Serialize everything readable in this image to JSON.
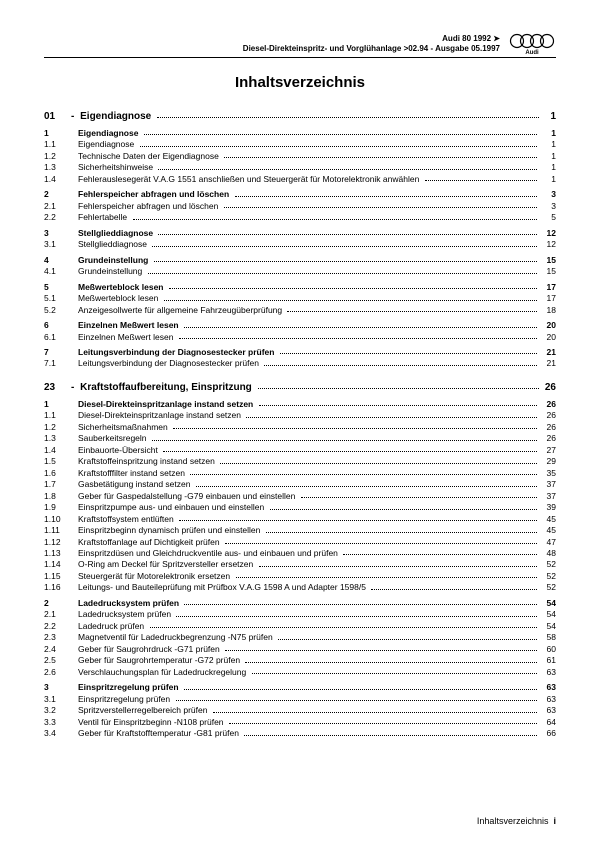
{
  "header": {
    "line1": "Audi 80 1992 ➤",
    "line2": "Diesel-Direkteinspritz- und Vorglühanlage >02.94 - Ausgabe 05.1997"
  },
  "title": "Inhaltsverzeichnis",
  "chapters": [
    {
      "num": "01",
      "title": "Eigendiagnose",
      "page": "1",
      "groups": [
        [
          {
            "num": "1",
            "title": "Eigendiagnose",
            "page": "1",
            "head": true
          },
          {
            "num": "1.1",
            "title": "Eigendiagnose",
            "page": "1"
          },
          {
            "num": "1.2",
            "title": "Technische Daten der Eigendiagnose",
            "page": "1"
          },
          {
            "num": "1.3",
            "title": "Sicherheitshinweise",
            "page": "1"
          },
          {
            "num": "1.4",
            "title": "Fehlerauslesegerät V.A.G 1551 anschließen und Steuergerät für Motorelektronik anwählen",
            "page": "1"
          }
        ],
        [
          {
            "num": "2",
            "title": "Fehlerspeicher abfragen und löschen",
            "page": "3",
            "head": true
          },
          {
            "num": "2.1",
            "title": "Fehlerspeicher abfragen und löschen",
            "page": "3"
          },
          {
            "num": "2.2",
            "title": "Fehlertabelle",
            "page": "5"
          }
        ],
        [
          {
            "num": "3",
            "title": "Stellglieddiagnose",
            "page": "12",
            "head": true
          },
          {
            "num": "3.1",
            "title": "Stellglieddiagnose",
            "page": "12"
          }
        ],
        [
          {
            "num": "4",
            "title": "Grundeinstellung",
            "page": "15",
            "head": true
          },
          {
            "num": "4.1",
            "title": "Grundeinstellung",
            "page": "15"
          }
        ],
        [
          {
            "num": "5",
            "title": "Meßwerteblock lesen",
            "page": "17",
            "head": true
          },
          {
            "num": "5.1",
            "title": "Meßwerteblock lesen",
            "page": "17"
          },
          {
            "num": "5.2",
            "title": "Anzeigesollwerte für allgemeine Fahrzeugüberprüfung",
            "page": "18"
          }
        ],
        [
          {
            "num": "6",
            "title": "Einzelnen Meßwert lesen",
            "page": "20",
            "head": true
          },
          {
            "num": "6.1",
            "title": "Einzelnen Meßwert lesen",
            "page": "20"
          }
        ],
        [
          {
            "num": "7",
            "title": "Leitungsverbindung der Diagnosestecker prüfen",
            "page": "21",
            "head": true
          },
          {
            "num": "7.1",
            "title": "Leitungsverbindung der Diagnosestecker prüfen",
            "page": "21"
          }
        ]
      ]
    },
    {
      "num": "23",
      "title": "Kraftstoffaufbereitung, Einspritzung",
      "page": "26",
      "groups": [
        [
          {
            "num": "1",
            "title": "Diesel-Direkteinspritzanlage instand setzen",
            "page": "26",
            "head": true
          },
          {
            "num": "1.1",
            "title": "Diesel-Direkteinspritzanlage instand setzen",
            "page": "26"
          },
          {
            "num": "1.2",
            "title": "Sicherheitsmaßnahmen",
            "page": "26"
          },
          {
            "num": "1.3",
            "title": "Sauberkeitsregeln",
            "page": "26"
          },
          {
            "num": "1.4",
            "title": "Einbauorte-Übersicht",
            "page": "27"
          },
          {
            "num": "1.5",
            "title": "Kraftstoffeinspritzung instand setzen",
            "page": "29"
          },
          {
            "num": "1.6",
            "title": "Kraftstofffilter instand setzen",
            "page": "35"
          },
          {
            "num": "1.7",
            "title": "Gasbetätigung instand setzen",
            "page": "37"
          },
          {
            "num": "1.8",
            "title": "Geber für Gaspedalstellung -G79 einbauen und einstellen",
            "page": "37"
          },
          {
            "num": "1.9",
            "title": "Einspritzpumpe aus- und einbauen und einstellen",
            "page": "39"
          },
          {
            "num": "1.10",
            "title": "Kraftstoffsystem entlüften",
            "page": "45"
          },
          {
            "num": "1.11",
            "title": "Einspritzbeginn dynamisch prüfen und einstellen",
            "page": "45"
          },
          {
            "num": "1.12",
            "title": "Kraftstoffanlage auf Dichtigkeit prüfen",
            "page": "47"
          },
          {
            "num": "1.13",
            "title": "Einspritzdüsen und Gleichdruckventile aus- und einbauen und prüfen",
            "page": "48"
          },
          {
            "num": "1.14",
            "title": "O-Ring am Deckel für Spritzversteller ersetzen",
            "page": "52"
          },
          {
            "num": "1.15",
            "title": "Steuergerät für Motorelektronik ersetzen",
            "page": "52"
          },
          {
            "num": "1.16",
            "title": "Leitungs- und Bauteileprüfung mit Prüfbox V.A.G 1598 A und Adapter 1598/5",
            "page": "52"
          }
        ],
        [
          {
            "num": "2",
            "title": "Ladedrucksystem prüfen",
            "page": "54",
            "head": true
          },
          {
            "num": "2.1",
            "title": "Ladedrucksystem prüfen",
            "page": "54"
          },
          {
            "num": "2.2",
            "title": "Ladedruck prüfen",
            "page": "54"
          },
          {
            "num": "2.3",
            "title": "Magnetventil für Ladedruckbegrenzung -N75 prüfen",
            "page": "58"
          },
          {
            "num": "2.4",
            "title": "Geber für Saugrohrdruck -G71 prüfen",
            "page": "60"
          },
          {
            "num": "2.5",
            "title": "Geber für Saugrohrtemperatur -G72 prüfen",
            "page": "61"
          },
          {
            "num": "2.6",
            "title": "Verschlauchungsplan für Ladedruckregelung",
            "page": "63"
          }
        ],
        [
          {
            "num": "3",
            "title": "Einspritzregelung prüfen",
            "page": "63",
            "head": true
          },
          {
            "num": "3.1",
            "title": "Einspritzregelung prüfen",
            "page": "63"
          },
          {
            "num": "3.2",
            "title": "Spritzverstellerregelbereich prüfen",
            "page": "63"
          },
          {
            "num": "3.3",
            "title": "Ventil für Einspritzbeginn -N108 prüfen",
            "page": "64"
          },
          {
            "num": "3.4",
            "title": "Geber für Kraftstofftemperatur -G81 prüfen",
            "page": "66"
          }
        ]
      ]
    }
  ],
  "footer": "Inhaltsverzeichnis",
  "footerPage": "i"
}
